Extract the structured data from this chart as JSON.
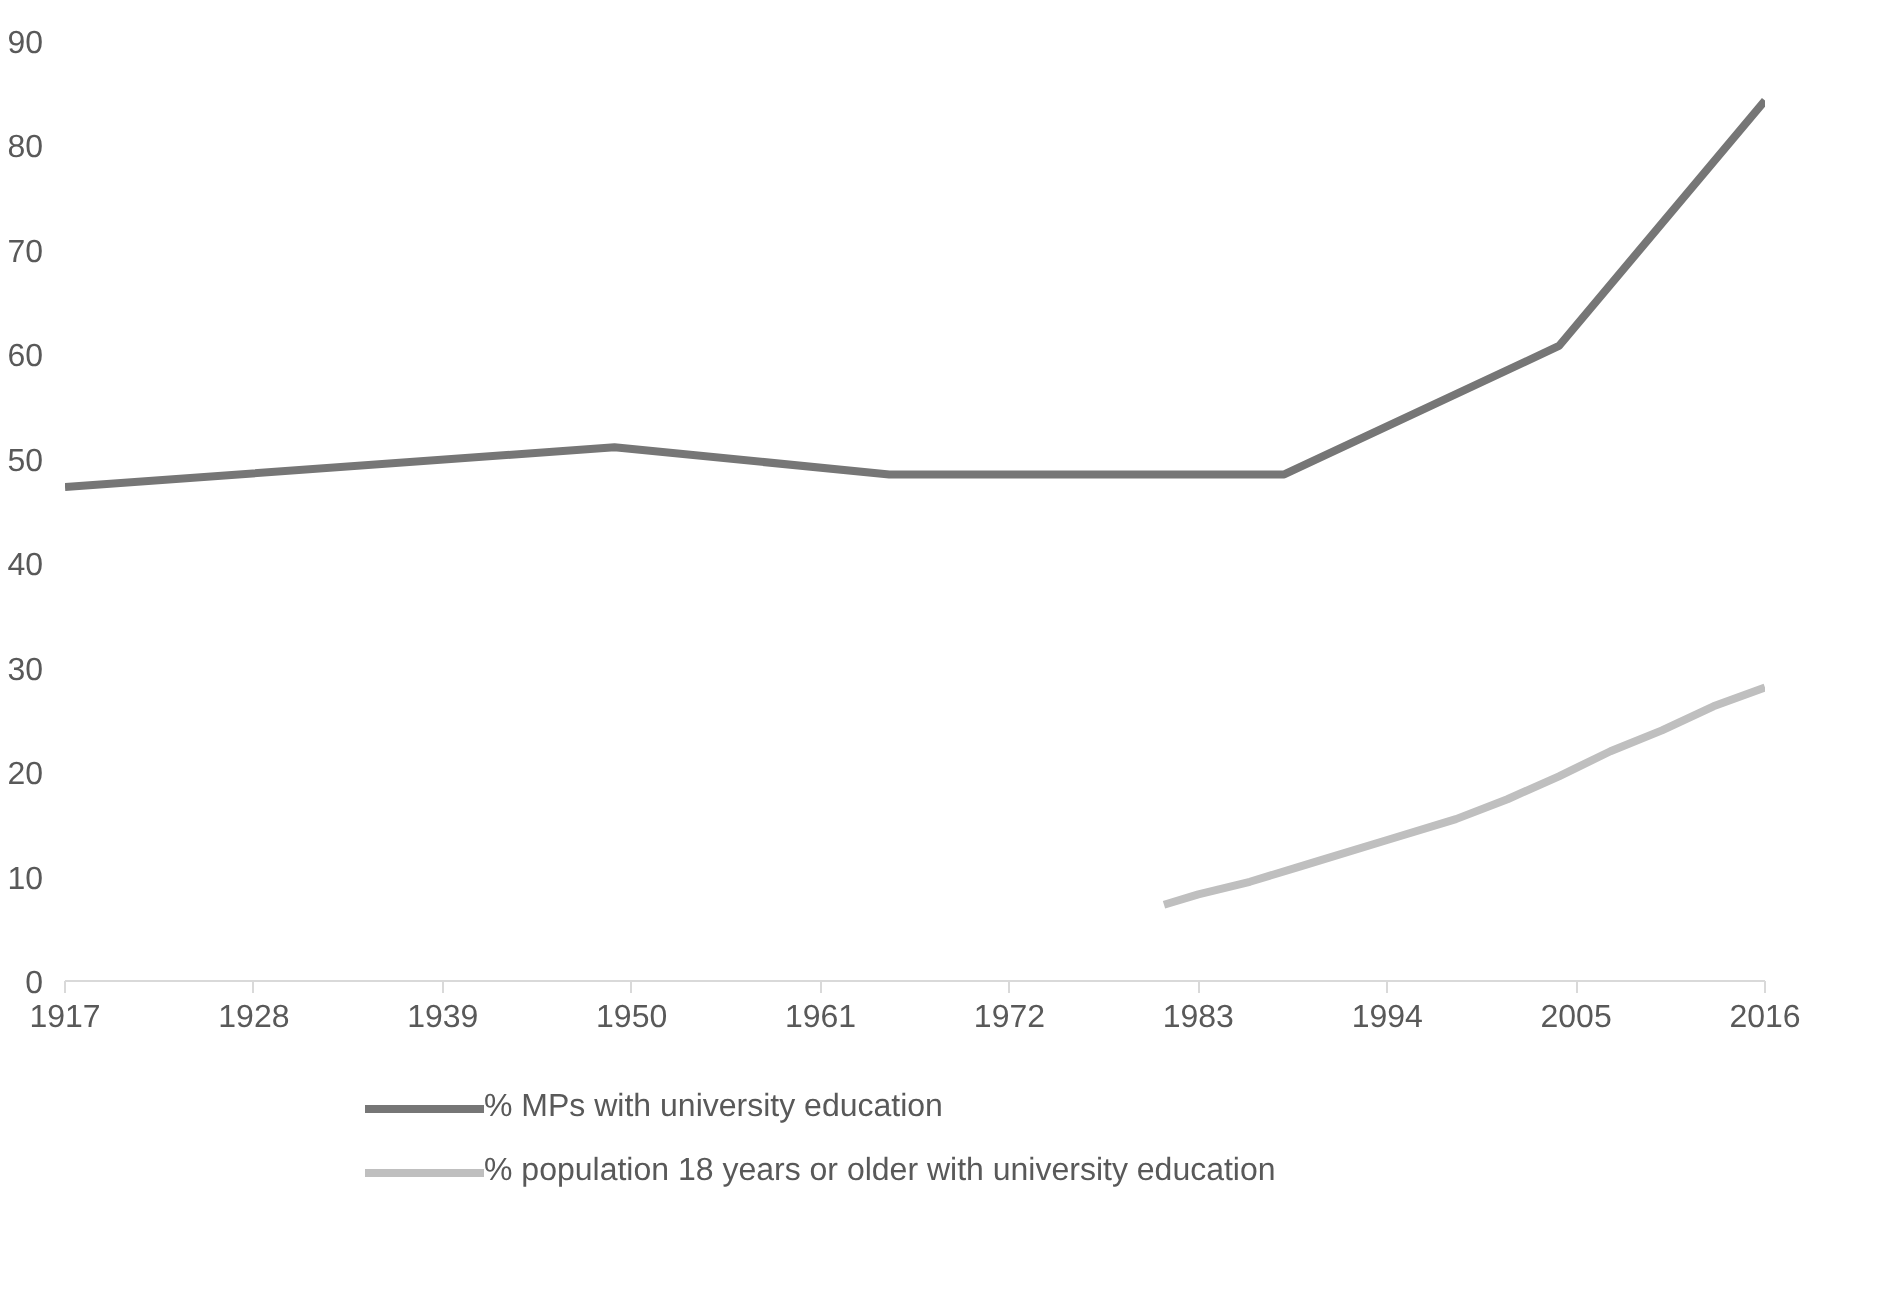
{
  "chart_data": {
    "type": "line",
    "xlim": [
      1917,
      2016
    ],
    "xticks": [
      1917,
      1928,
      1939,
      1950,
      1961,
      1972,
      1983,
      1994,
      2005,
      2016
    ],
    "ylim": [
      0,
      90
    ],
    "yticks": [
      0,
      10,
      20,
      30,
      40,
      50,
      60,
      70,
      80,
      90
    ],
    "grid": false,
    "legend": "bottom",
    "marker": "none",
    "line_style": "solid",
    "series": [
      {
        "name": "% MPs with university education",
        "color": "#767676",
        "x": [
          1917,
          1949,
          1965,
          1988,
          2004,
          2016
        ],
        "values": [
          47.3,
          51.1,
          48.5,
          48.5,
          60.8,
          84.3
        ]
      },
      {
        "name": "% population 18 years or older with university education",
        "color": "#bfbfbf",
        "x": [
          1981,
          1983,
          1986,
          1989,
          1990,
          1994,
          1998,
          2001,
          2004,
          2007,
          2010,
          2013,
          2016
        ],
        "values": [
          7.3,
          8.3,
          9.5,
          11,
          11.5,
          13.5,
          15.5,
          17.4,
          19.6,
          22,
          24,
          26.3,
          28.1
        ]
      }
    ]
  }
}
